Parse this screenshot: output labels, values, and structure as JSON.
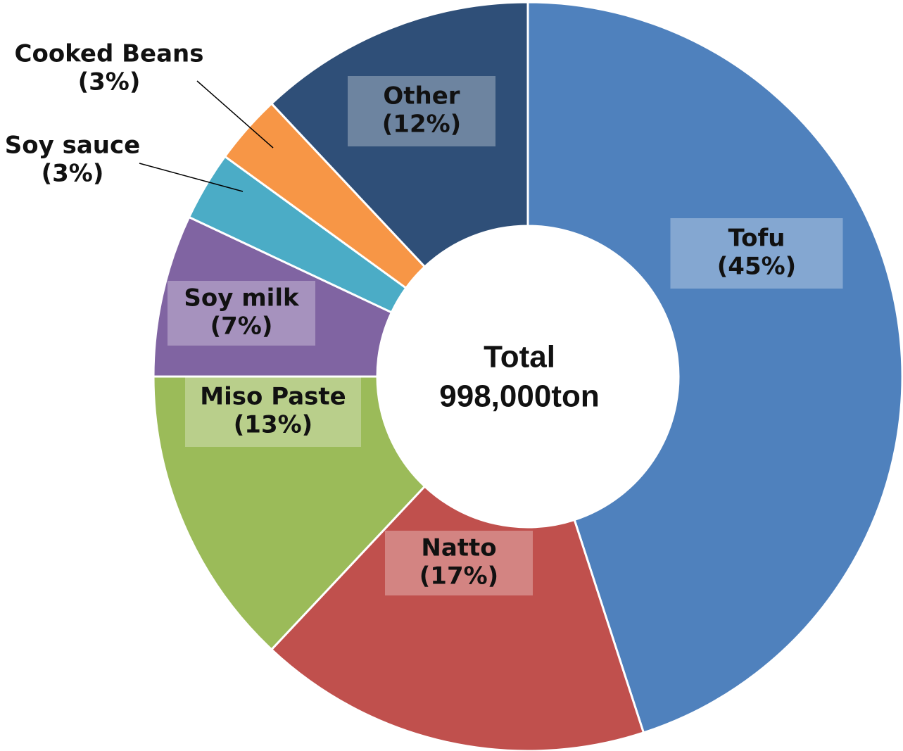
{
  "chart_data": {
    "type": "donut",
    "center_title": "Total",
    "center_value": "998,000ton",
    "categories": [
      "Tofu",
      "Natto",
      "Miso Paste",
      "Soy milk",
      "Soy sauce",
      "Cooked Beans",
      "Other"
    ],
    "values": [
      45,
      17,
      13,
      7,
      3,
      3,
      12
    ],
    "value_labels": [
      "(45%)",
      "(17%)",
      "(13%)",
      "(7%)",
      "(3%)",
      "(3%)",
      "(12%)"
    ],
    "colors": [
      "#4f81bd",
      "#c0504d",
      "#9bbb59",
      "#8064a2",
      "#4bacc6",
      "#f79646",
      "#2f4f78"
    ]
  }
}
